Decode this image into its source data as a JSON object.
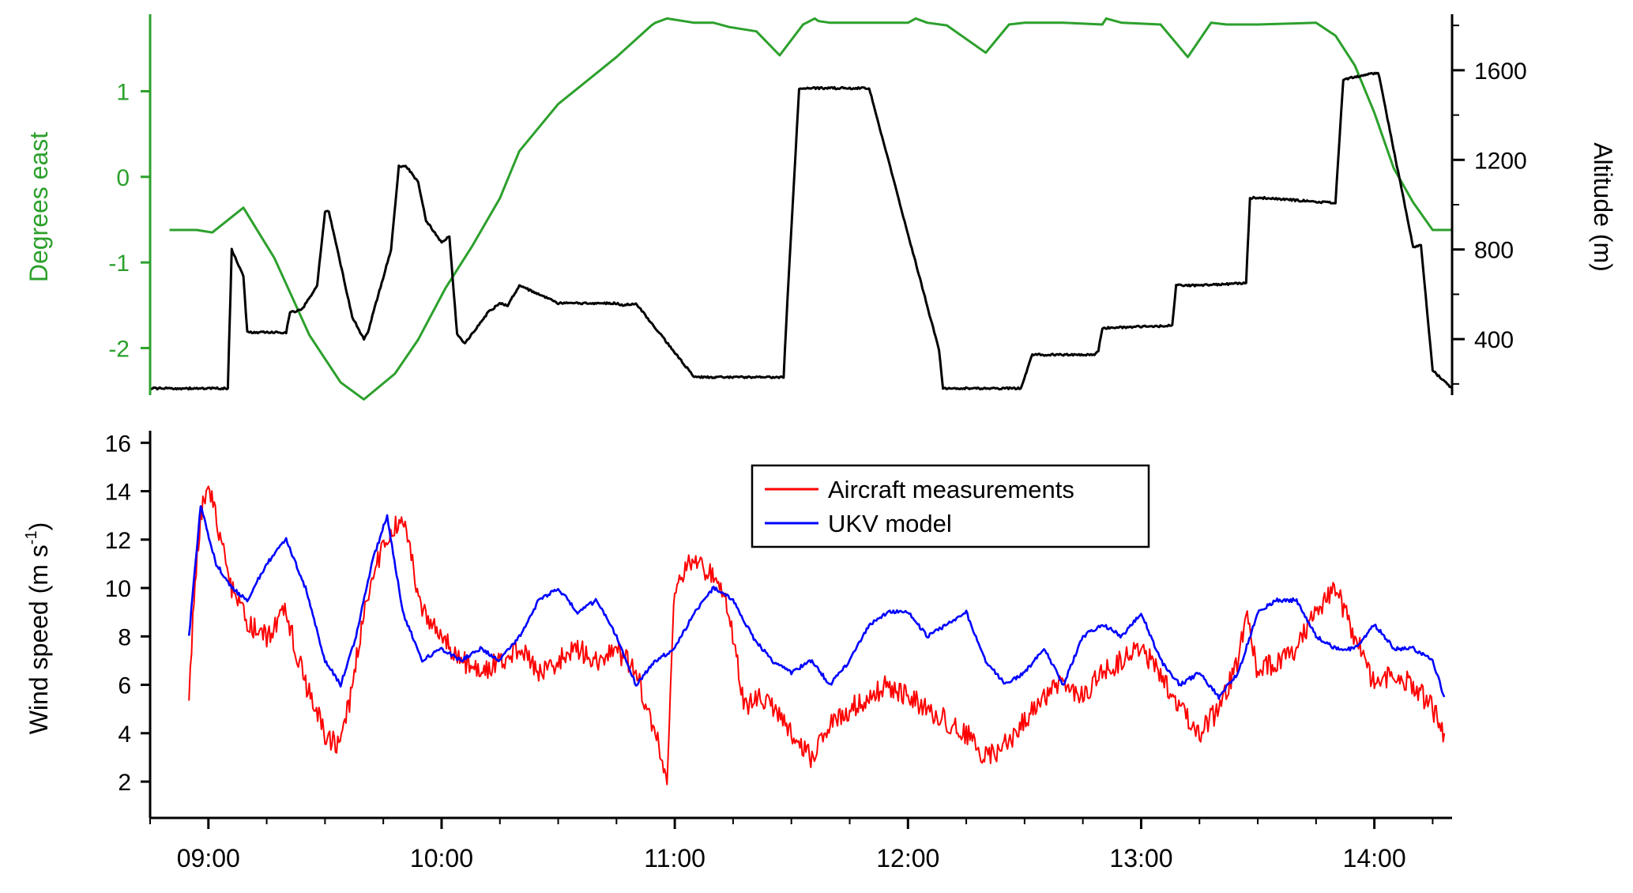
{
  "figure": {
    "top_chart": {
      "left_axis_label": "Degrees east",
      "right_axis_label": "Altitude (m)"
    },
    "bottom_chart": {
      "y_axis_label": "Wind speed (m s",
      "y_axis_label_superscript": "-1",
      "y_axis_label_close": ")"
    },
    "legend": {
      "items": [
        "Aircraft measurements",
        "UKV model"
      ]
    }
  },
  "colors": {
    "longitude": "#2ca02c",
    "altitude": "#000000",
    "aircraft": "#ff0000",
    "model": "#0000ff"
  },
  "chart_data": [
    {
      "type": "line",
      "x_axis": "time of day (HH:MM)",
      "xlim": [
        "08:45",
        "14:20"
      ],
      "x_ticks": [
        "09:00",
        "10:00",
        "11:00",
        "12:00",
        "13:00",
        "14:00"
      ],
      "y_left": {
        "label": "Degrees east",
        "ylim": [
          -2.55,
          1.9
        ],
        "ticks": [
          -2,
          -1,
          0,
          1
        ]
      },
      "y_right": {
        "label": "Altitude (m)",
        "ylim": [
          150,
          1850
        ],
        "ticks": [
          400,
          800,
          1200,
          1600
        ]
      },
      "grid": false,
      "series": [
        {
          "axis": "left",
          "color": "#2ca02c",
          "x": [
            "08:50",
            "08:57",
            "09:01",
            "09:09",
            "09:17",
            "09:26",
            "09:34",
            "09:40",
            "09:48",
            "09:54",
            "10:01",
            "10:08",
            "10:15",
            "10:20",
            "10:30",
            "10:45",
            "10:54",
            "10:55",
            "10:58",
            "11:05",
            "11:10",
            "11:14",
            "11:21",
            "11:27",
            "11:33",
            "11:36",
            "11:37",
            "11:40",
            "11:50",
            "12:00",
            "12:02",
            "12:05",
            "12:10",
            "12:20",
            "12:26",
            "12:30",
            "12:40",
            "12:50",
            "12:51",
            "12:55",
            "13:05",
            "13:12",
            "13:18",
            "13:22",
            "13:30",
            "13:45",
            "13:50",
            "13:55",
            "14:00",
            "14:05",
            "14:10",
            "14:15",
            "14:20"
          ],
          "y": [
            -0.62,
            -0.62,
            -0.65,
            -0.36,
            -0.95,
            -1.85,
            -2.4,
            -2.6,
            -2.3,
            -1.9,
            -1.3,
            -0.8,
            -0.25,
            0.3,
            0.85,
            1.4,
            1.77,
            1.8,
            1.85,
            1.8,
            1.8,
            1.75,
            1.7,
            1.42,
            1.78,
            1.85,
            1.82,
            1.8,
            1.8,
            1.8,
            1.85,
            1.8,
            1.77,
            1.45,
            1.78,
            1.8,
            1.8,
            1.78,
            1.85,
            1.8,
            1.78,
            1.4,
            1.8,
            1.78,
            1.78,
            1.8,
            1.65,
            1.3,
            0.75,
            0.1,
            -0.3,
            -0.62,
            -0.62
          ]
        },
        {
          "axis": "right",
          "color": "#000000",
          "x": [
            "08:45",
            "08:50",
            "09:01",
            "09:05",
            "09:06",
            "09:09",
            "09:10",
            "09:16",
            "09:20",
            "09:21",
            "09:24",
            "09:28",
            "09:30",
            "09:31",
            "09:37",
            "09:40",
            "09:41",
            "09:47",
            "09:49",
            "09:51",
            "09:54",
            "09:56",
            "09:58",
            "10:00",
            "10:02",
            "10:04",
            "10:06",
            "10:12",
            "10:15",
            "10:17",
            "10:20",
            "10:30",
            "10:45",
            "10:46",
            "10:50",
            "11:05",
            "11:06",
            "11:10",
            "11:28",
            "11:29",
            "11:32",
            "11:45",
            "11:46",
            "11:50",
            "12:08",
            "12:09",
            "12:14",
            "12:28",
            "12:29",
            "12:32",
            "12:48",
            "12:49",
            "12:50",
            "13:08",
            "13:09",
            "13:15",
            "13:27",
            "13:28",
            "13:32",
            "13:47",
            "13:50",
            "13:52",
            "13:58",
            "14:01",
            "14:10",
            "14:12",
            "14:15",
            "14:20"
          ],
          "y": [
            180,
            180,
            180,
            180,
            800,
            680,
            430,
            430,
            430,
            520,
            530,
            640,
            970,
            970,
            500,
            400,
            430,
            800,
            1170,
            1170,
            1100,
            930,
            880,
            830,
            860,
            420,
            380,
            520,
            560,
            550,
            640,
            560,
            560,
            550,
            560,
            230,
            230,
            230,
            230,
            580,
            1520,
            1520,
            1520,
            1520,
            350,
            180,
            180,
            180,
            180,
            330,
            330,
            350,
            450,
            460,
            640,
            640,
            650,
            1030,
            1030,
            1010,
            1010,
            1560,
            1580,
            1590,
            810,
            820,
            260,
            180
          ]
        }
      ]
    },
    {
      "type": "line",
      "x_axis": "time of day (HH:MM)",
      "xlim": [
        "08:45",
        "14:20"
      ],
      "x_ticks": [
        "09:00",
        "10:00",
        "11:00",
        "12:00",
        "13:00",
        "14:00"
      ],
      "ylabel": "Wind speed (m s -1)",
      "ylim": [
        0.5,
        16.5
      ],
      "y_ticks": [
        2,
        4,
        6,
        8,
        10,
        12,
        14,
        16
      ],
      "legend_position": "top-center",
      "grid": false,
      "series": [
        {
          "name": "Aircraft measurements",
          "color": "#ff0000",
          "x": [
            "08:55",
            "08:56",
            "08:58",
            "09:00",
            "09:03",
            "09:06",
            "09:10",
            "09:15",
            "09:20",
            "09:25",
            "09:30",
            "09:33",
            "09:36",
            "09:40",
            "09:43",
            "09:46",
            "09:50",
            "09:55",
            "10:00",
            "10:05",
            "10:10",
            "10:15",
            "10:20",
            "10:25",
            "10:30",
            "10:35",
            "10:40",
            "10:45",
            "10:50",
            "10:55",
            "10:58",
            "11:00",
            "11:03",
            "11:06",
            "11:10",
            "11:14",
            "11:18",
            "11:22",
            "11:25",
            "11:30",
            "11:35",
            "11:40",
            "11:45",
            "11:50",
            "11:55",
            "12:00",
            "12:05",
            "12:10",
            "12:15",
            "12:20",
            "12:25",
            "12:30",
            "12:35",
            "12:40",
            "12:45",
            "12:50",
            "12:55",
            "13:00",
            "13:05",
            "13:10",
            "13:15",
            "13:20",
            "13:25",
            "13:27",
            "13:30",
            "13:35",
            "13:40",
            "13:45",
            "13:50",
            "13:55",
            "14:00",
            "14:05",
            "14:10",
            "14:15",
            "14:18"
          ],
          "y": [
            5,
            9,
            13,
            14.5,
            12,
            10,
            8.5,
            8,
            9,
            6,
            4,
            3.5,
            5,
            9,
            11,
            12,
            13,
            9,
            8,
            7,
            6.5,
            7,
            7.5,
            6.5,
            7,
            7.5,
            7,
            7.5,
            6.5,
            4,
            2,
            10,
            11,
            11,
            10.5,
            9,
            5,
            5.5,
            5,
            4,
            3,
            4.5,
            5,
            5.5,
            6,
            5.5,
            5,
            4.5,
            4,
            3,
            3.5,
            4.5,
            5.5,
            6,
            5.5,
            6.5,
            7,
            7.5,
            6.5,
            5,
            4,
            5,
            7,
            9,
            6.5,
            7,
            7.5,
            9,
            10,
            8,
            6,
            6.5,
            6,
            5,
            4
          ]
        },
        {
          "name": "UKV model",
          "color": "#0000ff",
          "x": [
            "08:55",
            "08:58",
            "09:02",
            "09:06",
            "09:10",
            "09:15",
            "09:20",
            "09:25",
            "09:30",
            "09:34",
            "09:38",
            "09:42",
            "09:46",
            "09:50",
            "09:55",
            "10:00",
            "10:05",
            "10:10",
            "10:15",
            "10:20",
            "10:25",
            "10:30",
            "10:35",
            "10:40",
            "10:45",
            "10:50",
            "10:55",
            "11:00",
            "11:05",
            "11:10",
            "11:15",
            "11:20",
            "11:25",
            "11:30",
            "11:35",
            "11:40",
            "11:45",
            "11:50",
            "11:55",
            "12:00",
            "12:05",
            "12:10",
            "12:15",
            "12:20",
            "12:25",
            "12:30",
            "12:35",
            "12:40",
            "12:45",
            "12:50",
            "12:55",
            "13:00",
            "13:05",
            "13:10",
            "13:15",
            "13:20",
            "13:25",
            "13:30",
            "13:35",
            "13:40",
            "13:45",
            "13:50",
            "13:55",
            "14:00",
            "14:05",
            "14:10",
            "14:15",
            "14:18"
          ],
          "y": [
            8,
            13.4,
            11,
            10,
            9.5,
            11,
            12,
            10,
            7,
            6,
            8,
            11,
            13,
            9,
            7,
            7.5,
            7,
            7.5,
            7,
            8,
            9.5,
            10,
            9,
            9.5,
            8,
            6,
            7,
            7.5,
            9,
            10,
            9.5,
            8,
            7,
            6.5,
            7,
            6,
            7,
            8.5,
            9,
            9,
            8,
            8.5,
            9,
            7,
            6,
            6.5,
            7.5,
            6,
            8,
            8.5,
            8,
            9,
            7,
            6,
            6.5,
            5.5,
            6.5,
            9,
            9.5,
            9.5,
            8,
            7.5,
            7.5,
            8.5,
            7.5,
            7.5,
            7,
            5.5
          ]
        }
      ]
    }
  ]
}
